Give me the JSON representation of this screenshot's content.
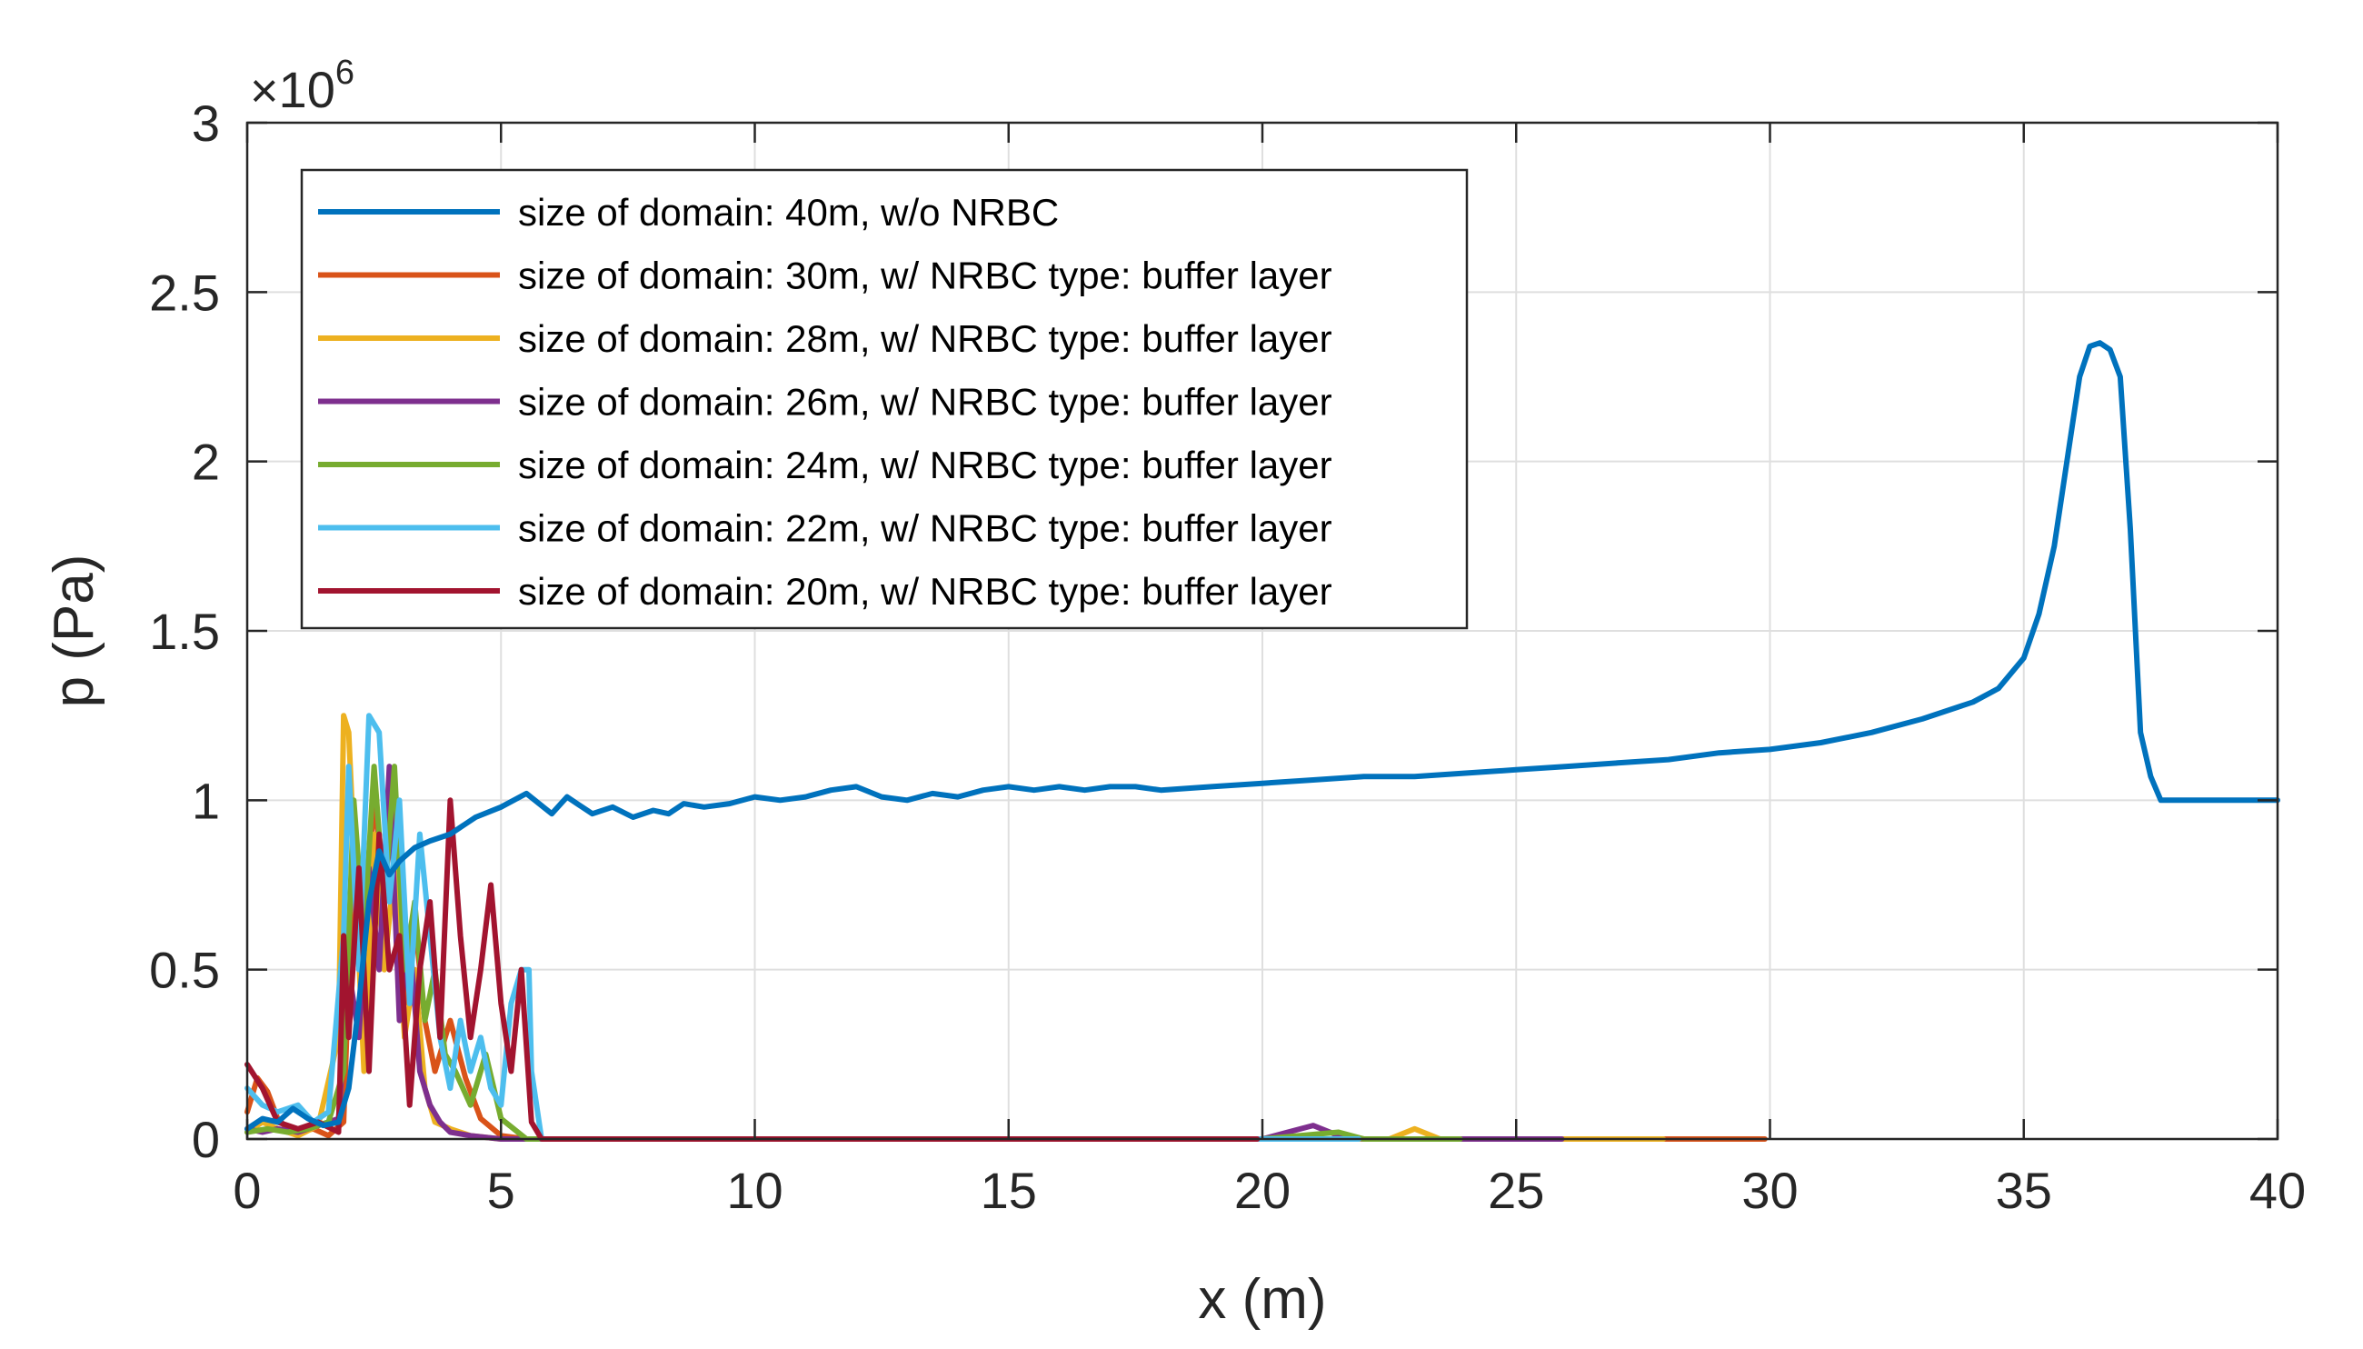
{
  "chart_data": {
    "type": "line",
    "title": "",
    "xlabel": "x (m)",
    "ylabel": "p (Pa)",
    "xlim": [
      0,
      40
    ],
    "ylim": [
      0,
      3000000
    ],
    "grid": true,
    "legend_position": "top-left",
    "y_exponent_label": {
      "times": "×",
      "base": "10",
      "power": "6"
    },
    "x_ticks": [
      {
        "value": 0,
        "label": "0"
      },
      {
        "value": 5,
        "label": "5"
      },
      {
        "value": 10,
        "label": "10"
      },
      {
        "value": 15,
        "label": "15"
      },
      {
        "value": 20,
        "label": "20"
      },
      {
        "value": 25,
        "label": "25"
      },
      {
        "value": 30,
        "label": "30"
      },
      {
        "value": 35,
        "label": "35"
      },
      {
        "value": 40,
        "label": "40"
      }
    ],
    "y_ticks": [
      {
        "value": 0,
        "label": "0"
      },
      {
        "value": 500000,
        "label": "0.5"
      },
      {
        "value": 1000000,
        "label": "1"
      },
      {
        "value": 1500000,
        "label": "1.5"
      },
      {
        "value": 2000000,
        "label": "2"
      },
      {
        "value": 2500000,
        "label": "2.5"
      },
      {
        "value": 3000000,
        "label": "3"
      }
    ],
    "series": [
      {
        "name": "size of domain: 40m, w/o NRBC",
        "color": "#0072BD",
        "x": [
          0,
          0.3,
          0.6,
          0.9,
          1.2,
          1.5,
          1.8,
          1.9,
          2.0,
          2.2,
          2.4,
          2.6,
          2.8,
          3.0,
          3.3,
          3.6,
          4.0,
          4.5,
          5.0,
          5.5,
          6.0,
          6.3,
          6.5,
          6.8,
          7.2,
          7.6,
          8.0,
          8.3,
          8.6,
          9.0,
          9.5,
          10,
          10.5,
          11,
          11.5,
          12,
          12.5,
          13,
          13.5,
          14,
          14.5,
          15,
          15.5,
          16,
          16.5,
          17,
          17.5,
          18,
          19,
          20,
          21,
          22,
          23,
          24,
          25,
          26,
          27,
          28,
          29,
          30,
          31,
          32,
          33,
          34,
          34.5,
          35,
          35.3,
          35.6,
          35.9,
          36.1,
          36.3,
          36.5,
          36.7,
          36.9,
          37.1,
          37.3,
          37.5,
          37.7,
          38,
          39,
          40
        ],
        "y": [
          30000,
          60000,
          50000,
          90000,
          60000,
          40000,
          50000,
          100000,
          150000,
          400000,
          700000,
          850000,
          780000,
          820000,
          860000,
          880000,
          900000,
          950000,
          980000,
          1020000,
          960000,
          1010000,
          990000,
          960000,
          980000,
          950000,
          970000,
          960000,
          990000,
          980000,
          990000,
          1010000,
          1000000,
          1010000,
          1030000,
          1040000,
          1010000,
          1000000,
          1020000,
          1010000,
          1030000,
          1040000,
          1030000,
          1040000,
          1030000,
          1040000,
          1040000,
          1030000,
          1040000,
          1050000,
          1060000,
          1070000,
          1070000,
          1080000,
          1090000,
          1100000,
          1110000,
          1120000,
          1140000,
          1150000,
          1170000,
          1200000,
          1240000,
          1290000,
          1330000,
          1420000,
          1550000,
          1750000,
          2050000,
          2250000,
          2340000,
          2350000,
          2330000,
          2250000,
          1800000,
          1200000,
          1070000,
          1000000,
          1000000,
          1000000,
          1000000
        ]
      },
      {
        "name": "size of domain: 30m, w/ NRBC type: buffer layer",
        "color": "#D95319",
        "x": [
          0,
          0.2,
          0.4,
          0.6,
          0.8,
          1.0,
          1.3,
          1.6,
          1.9,
          2.1,
          2.3,
          2.5,
          2.7,
          2.9,
          3.1,
          3.3,
          3.5,
          3.7,
          4.0,
          4.3,
          4.6,
          5.0,
          5.5,
          6,
          10,
          20,
          25,
          29.9
        ],
        "y": [
          80000,
          180000,
          140000,
          60000,
          30000,
          20000,
          30000,
          10000,
          50000,
          900000,
          600000,
          1000000,
          750000,
          1000000,
          400000,
          650000,
          350000,
          200000,
          350000,
          180000,
          60000,
          10000,
          0,
          0,
          0,
          0,
          0,
          0
        ]
      },
      {
        "name": "size of domain: 28m, w/ NRBC type: buffer layer",
        "color": "#EDB120",
        "x": [
          0,
          0.3,
          0.6,
          1.0,
          1.4,
          1.8,
          1.9,
          2.0,
          2.15,
          2.3,
          2.5,
          2.7,
          2.9,
          3.1,
          3.3,
          3.5,
          3.7,
          4.0,
          4.4,
          5.0,
          6,
          10,
          20,
          22.5,
          23,
          23.5,
          27.9
        ],
        "y": [
          20000,
          50000,
          30000,
          10000,
          40000,
          300000,
          1250000,
          1200000,
          700000,
          200000,
          900000,
          500000,
          800000,
          300000,
          500000,
          150000,
          50000,
          30000,
          10000,
          0,
          0,
          0,
          0,
          0,
          30000,
          0,
          0
        ]
      },
      {
        "name": "size of domain: 26m, w/ NRBC type: buffer layer",
        "color": "#7E2F8E",
        "x": [
          0,
          0.3,
          0.6,
          1.0,
          1.4,
          1.8,
          2.0,
          2.2,
          2.4,
          2.6,
          2.8,
          3.0,
          3.2,
          3.4,
          3.6,
          3.8,
          4.0,
          4.4,
          5.0,
          6,
          10,
          19,
          20,
          20.5,
          21,
          21.5,
          22,
          25.9
        ],
        "y": [
          30000,
          20000,
          30000,
          20000,
          40000,
          60000,
          500000,
          300000,
          800000,
          500000,
          1100000,
          350000,
          600000,
          200000,
          100000,
          50000,
          20000,
          10000,
          0,
          0,
          0,
          0,
          0,
          20000,
          40000,
          10000,
          0,
          0
        ]
      },
      {
        "name": "size of domain: 24m, w/ NRBC type: buffer layer",
        "color": "#77AC30",
        "x": [
          0,
          0.4,
          0.8,
          1.2,
          1.6,
          1.9,
          2.1,
          2.3,
          2.5,
          2.7,
          2.9,
          3.1,
          3.3,
          3.5,
          3.7,
          3.9,
          4.1,
          4.4,
          4.7,
          5.0,
          5.5,
          6,
          10,
          20,
          21.5,
          22,
          23.9
        ],
        "y": [
          20000,
          30000,
          20000,
          30000,
          50000,
          200000,
          1000000,
          600000,
          1100000,
          700000,
          1100000,
          500000,
          700000,
          350000,
          500000,
          250000,
          200000,
          100000,
          250000,
          60000,
          0,
          0,
          0,
          0,
          20000,
          0,
          0
        ]
      },
      {
        "name": "size of domain: 22m, w/ NRBC type: buffer layer",
        "color": "#4DBEEE",
        "x": [
          0,
          0.3,
          0.6,
          1.0,
          1.3,
          1.6,
          1.9,
          2.0,
          2.2,
          2.4,
          2.6,
          2.8,
          3.0,
          3.2,
          3.4,
          3.6,
          3.8,
          4.0,
          4.2,
          4.4,
          4.6,
          4.8,
          5.0,
          5.2,
          5.4,
          5.55,
          5.6,
          5.8,
          6,
          10,
          20,
          21.9
        ],
        "y": [
          150000,
          100000,
          80000,
          100000,
          50000,
          80000,
          600000,
          1100000,
          500000,
          1250000,
          1200000,
          700000,
          1000000,
          400000,
          900000,
          600000,
          300000,
          150000,
          350000,
          200000,
          300000,
          150000,
          100000,
          400000,
          500000,
          500000,
          200000,
          0,
          0,
          0,
          0,
          0
        ]
      },
      {
        "name": "size of domain: 20m, w/ NRBC type: buffer layer",
        "color": "#A2142F",
        "x": [
          0,
          0.3,
          0.6,
          1.0,
          1.4,
          1.8,
          1.9,
          2.0,
          2.2,
          2.4,
          2.6,
          2.8,
          3.0,
          3.2,
          3.4,
          3.6,
          3.8,
          4.0,
          4.2,
          4.4,
          4.6,
          4.8,
          5.0,
          5.2,
          5.4,
          5.6,
          5.8,
          6,
          10,
          19.9
        ],
        "y": [
          220000,
          150000,
          50000,
          30000,
          50000,
          20000,
          600000,
          300000,
          800000,
          200000,
          900000,
          500000,
          600000,
          100000,
          500000,
          700000,
          300000,
          1000000,
          600000,
          300000,
          500000,
          750000,
          400000,
          200000,
          500000,
          50000,
          0,
          0,
          0,
          0
        ]
      }
    ]
  }
}
